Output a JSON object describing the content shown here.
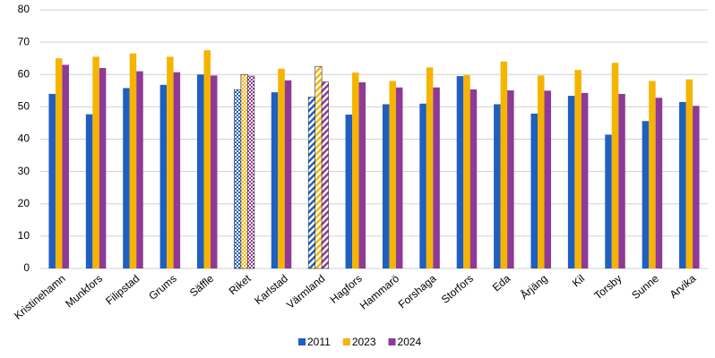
{
  "chart_data": {
    "type": "bar",
    "categories": [
      "Kristinehamn",
      "Munkfors",
      "Filipstad",
      "Grums",
      "Säffle",
      "Riket",
      "Karlstad",
      "Värmland",
      "Hagfors",
      "Hammarö",
      "Forshaga",
      "Storfors",
      "Eda",
      "Årjäng",
      "Kil",
      "Torsby",
      "Sunne",
      "Arvika"
    ],
    "patterns": [
      null,
      null,
      null,
      null,
      null,
      "checker",
      null,
      "hatch",
      null,
      null,
      null,
      null,
      null,
      null,
      null,
      null,
      null,
      null
    ],
    "series": [
      {
        "name": "2011",
        "color": "#1f5fbf",
        "values": [
          54,
          47.7,
          55.8,
          56.8,
          60,
          55.3,
          54.5,
          53,
          47.6,
          50.8,
          51,
          59.5,
          50.8,
          47.9,
          53.4,
          41.4,
          45.6,
          51.5
        ]
      },
      {
        "name": "2023",
        "color": "#f5b400",
        "values": [
          65,
          65.5,
          66.5,
          65.5,
          67.5,
          60,
          61.8,
          62.5,
          60.6,
          58,
          62.2,
          59.8,
          64,
          59.7,
          61.4,
          63.6,
          58,
          58.5
        ]
      },
      {
        "name": "2024",
        "color": "#8e3a96",
        "values": [
          63,
          62,
          61,
          60.7,
          59.7,
          59.5,
          58.2,
          57.7,
          57.6,
          56,
          56,
          55.4,
          55.1,
          55,
          54.3,
          54,
          52.8,
          50.3
        ]
      }
    ],
    "ylim": [
      0,
      80
    ],
    "yticks": [
      0,
      10,
      20,
      30,
      40,
      50,
      60,
      70,
      80
    ],
    "grid": true,
    "legend": "bottom"
  }
}
